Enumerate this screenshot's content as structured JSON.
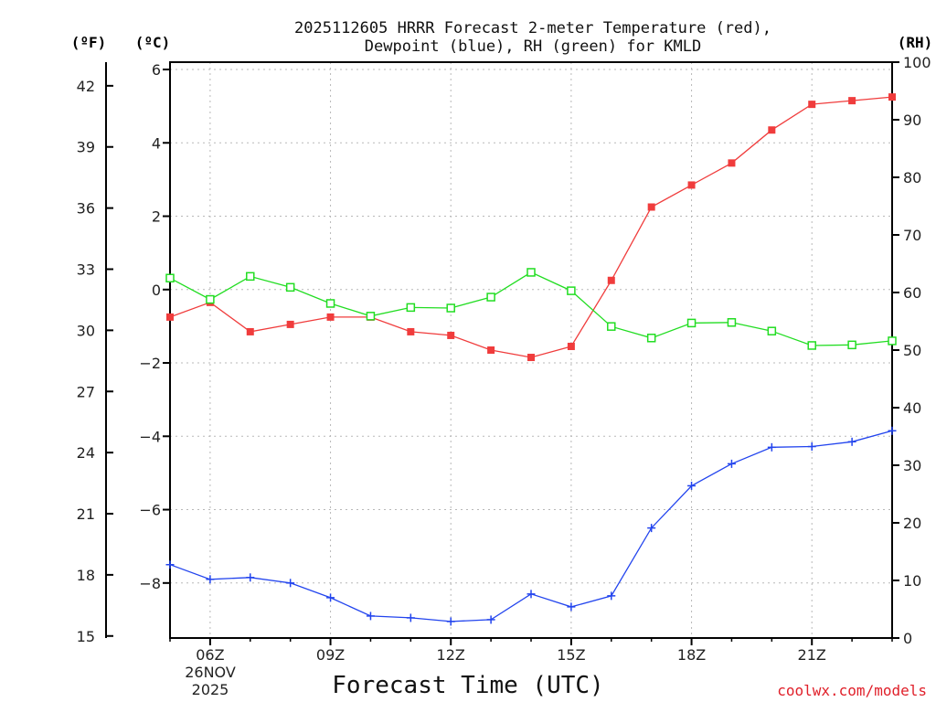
{
  "chart_data": {
    "type": "line",
    "title_line1": "2025112605 HRRR Forecast 2-meter Temperature (red),",
    "title_line2": "Dewpoint (blue), RH (green) for KMLD",
    "xlabel": "Forecast Time (UTC)",
    "credit": "coolwx.com/models",
    "units": {
      "fahrenheit": "(ºF)",
      "celsius": "(ºC)",
      "rh": "(RH)"
    },
    "x_hours": [
      5,
      6,
      7,
      8,
      9,
      10,
      11,
      12,
      13,
      14,
      15,
      16,
      17,
      18,
      19,
      20,
      21,
      22,
      23
    ],
    "xlim": [
      5,
      23
    ],
    "x_ticks": [
      {
        "hour": 6,
        "label": "06Z"
      },
      {
        "hour": 9,
        "label": "09Z"
      },
      {
        "hour": 12,
        "label": "12Z"
      },
      {
        "hour": 15,
        "label": "15Z"
      },
      {
        "hour": 18,
        "label": "18Z"
      },
      {
        "hour": 21,
        "label": "21Z"
      }
    ],
    "date_label_line1": "26NOV",
    "date_label_line2": "2025",
    "ylim_celsius": [
      -9.5,
      6.2
    ],
    "ylim_rh": [
      0,
      100
    ],
    "celsius_ticks": [
      6,
      4,
      2,
      0,
      -2,
      -4,
      -6,
      -8
    ],
    "fahrenheit_ticks": [
      42,
      39,
      36,
      33,
      30,
      27,
      24,
      21,
      18,
      15
    ],
    "rh_ticks": [
      100,
      90,
      80,
      70,
      60,
      50,
      40,
      30,
      20,
      10,
      0
    ],
    "series": [
      {
        "name": "Temperature",
        "axis": "celsius",
        "color": "#f03c3c",
        "marker": "filled-square",
        "values": [
          -0.75,
          -0.35,
          -1.15,
          -0.95,
          -0.75,
          -0.75,
          -1.15,
          -1.25,
          -1.65,
          -1.85,
          -1.55,
          0.25,
          2.25,
          2.85,
          3.45,
          4.35,
          5.05,
          5.15,
          5.25
        ]
      },
      {
        "name": "Dewpoint",
        "axis": "celsius",
        "color": "#2244ee",
        "marker": "plus",
        "values": [
          -7.5,
          -7.9,
          -7.85,
          -8.0,
          -8.4,
          -8.9,
          -8.95,
          -9.05,
          -9.0,
          -8.3,
          -8.65,
          -8.35,
          -6.5,
          -5.35,
          -4.75,
          -4.3,
          -4.28,
          -4.15,
          -3.85
        ]
      },
      {
        "name": "RH",
        "axis": "rh",
        "color": "#22dd22",
        "marker": "open-square",
        "values": [
          62.5,
          58.8,
          62.8,
          60.9,
          58.1,
          55.9,
          57.4,
          57.3,
          59.2,
          63.5,
          60.3,
          54.1,
          52.1,
          54.7,
          54.8,
          53.3,
          50.8,
          50.9,
          51.6
        ]
      }
    ]
  }
}
